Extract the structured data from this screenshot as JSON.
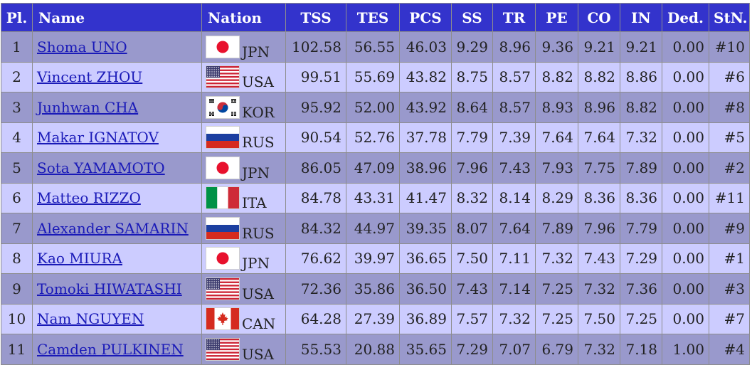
{
  "headers": {
    "pl": "Pl.",
    "name": "Name",
    "nation": "Nation",
    "tss": "TSS",
    "tes": "TES",
    "pcs": "PCS",
    "ss": "SS",
    "tr": "TR",
    "pe": "PE",
    "co": "CO",
    "in": "IN",
    "ded": "Ded.",
    "stn": "StN."
  },
  "rows": [
    {
      "pl": "1",
      "name": "Shoma UNO",
      "noc": "JPN",
      "flag": "japan-flag-icon",
      "tss": "102.58",
      "tes": "56.55",
      "pcs": "46.03",
      "ss": "9.29",
      "tr": "8.96",
      "pe": "9.36",
      "co": "9.21",
      "in": "9.21",
      "ded": "0.00",
      "stn": "#10"
    },
    {
      "pl": "2",
      "name": "Vincent ZHOU",
      "noc": "USA",
      "flag": "usa-flag-icon",
      "tss": "99.51",
      "tes": "55.69",
      "pcs": "43.82",
      "ss": "8.75",
      "tr": "8.57",
      "pe": "8.82",
      "co": "8.82",
      "in": "8.86",
      "ded": "0.00",
      "stn": "#6"
    },
    {
      "pl": "3",
      "name": "Junhwan CHA",
      "noc": "KOR",
      "flag": "korea-flag-icon",
      "tss": "95.92",
      "tes": "52.00",
      "pcs": "43.92",
      "ss": "8.64",
      "tr": "8.57",
      "pe": "8.93",
      "co": "8.96",
      "in": "8.82",
      "ded": "0.00",
      "stn": "#8"
    },
    {
      "pl": "4",
      "name": "Makar IGNATOV",
      "noc": "RUS",
      "flag": "russia-flag-icon",
      "tss": "90.54",
      "tes": "52.76",
      "pcs": "37.78",
      "ss": "7.79",
      "tr": "7.39",
      "pe": "7.64",
      "co": "7.64",
      "in": "7.32",
      "ded": "0.00",
      "stn": "#5"
    },
    {
      "pl": "5",
      "name": "Sota YAMAMOTO",
      "noc": "JPN",
      "flag": "japan-flag-icon",
      "tss": "86.05",
      "tes": "47.09",
      "pcs": "38.96",
      "ss": "7.96",
      "tr": "7.43",
      "pe": "7.93",
      "co": "7.75",
      "in": "7.89",
      "ded": "0.00",
      "stn": "#2"
    },
    {
      "pl": "6",
      "name": "Matteo RIZZO",
      "noc": "ITA",
      "flag": "italy-flag-icon",
      "tss": "84.78",
      "tes": "43.31",
      "pcs": "41.47",
      "ss": "8.32",
      "tr": "8.14",
      "pe": "8.29",
      "co": "8.36",
      "in": "8.36",
      "ded": "0.00",
      "stn": "#11"
    },
    {
      "pl": "7",
      "name": "Alexander SAMARIN",
      "noc": "RUS",
      "flag": "russia-flag-icon",
      "tss": "84.32",
      "tes": "44.97",
      "pcs": "39.35",
      "ss": "8.07",
      "tr": "7.64",
      "pe": "7.89",
      "co": "7.96",
      "in": "7.79",
      "ded": "0.00",
      "stn": "#9"
    },
    {
      "pl": "8",
      "name": "Kao MIURA",
      "noc": "JPN",
      "flag": "japan-flag-icon",
      "tss": "76.62",
      "tes": "39.97",
      "pcs": "36.65",
      "ss": "7.50",
      "tr": "7.11",
      "pe": "7.32",
      "co": "7.43",
      "in": "7.29",
      "ded": "0.00",
      "stn": "#1"
    },
    {
      "pl": "9",
      "name": "Tomoki HIWATASHI",
      "noc": "USA",
      "flag": "usa-flag-icon",
      "tss": "72.36",
      "tes": "35.86",
      "pcs": "36.50",
      "ss": "7.43",
      "tr": "7.14",
      "pe": "7.25",
      "co": "7.32",
      "in": "7.36",
      "ded": "0.00",
      "stn": "#3"
    },
    {
      "pl": "10",
      "name": "Nam NGUYEN",
      "noc": "CAN",
      "flag": "canada-flag-icon",
      "tss": "64.28",
      "tes": "27.39",
      "pcs": "36.89",
      "ss": "7.57",
      "tr": "7.32",
      "pe": "7.25",
      "co": "7.50",
      "in": "7.25",
      "ded": "0.00",
      "stn": "#7"
    },
    {
      "pl": "11",
      "name": "Camden PULKINEN",
      "noc": "USA",
      "flag": "usa-flag-icon",
      "tss": "55.53",
      "tes": "20.88",
      "pcs": "35.65",
      "ss": "7.29",
      "tr": "7.07",
      "pe": "6.79",
      "co": "7.32",
      "in": "7.18",
      "ded": "1.00",
      "stn": "#4"
    }
  ],
  "colors": {
    "header_bg": "#3333cc",
    "row_odd": "#9999cc",
    "row_even": "#ccccff",
    "link": "#1a1ab8"
  }
}
